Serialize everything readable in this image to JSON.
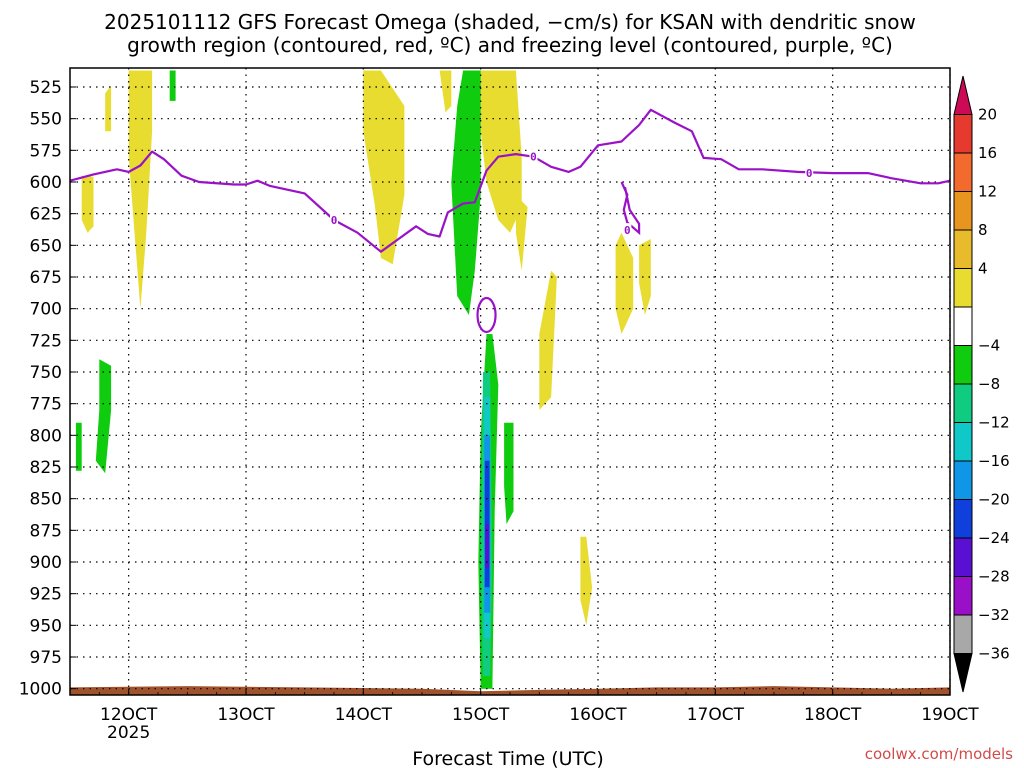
{
  "chart_data": {
    "type": "heatmap",
    "title_line1": "2025101112 GFS Forecast Omega (shaded, −cm/s) for KSAN with dendritic snow",
    "title_line2": "growth region (contoured, red, ºC) and freezing level (contoured, purple, ºC)",
    "xlabel": "Forecast Time (UTC)",
    "x_ticks": [
      "12OCT",
      "13OCT",
      "14OCT",
      "15OCT",
      "16OCT",
      "17OCT",
      "18OCT",
      "19OCT"
    ],
    "x_subtick": "2025",
    "x_range_days": [
      11.5,
      19.0
    ],
    "y_ticks": [
      "525",
      "550",
      "575",
      "600",
      "625",
      "650",
      "675",
      "700",
      "725",
      "750",
      "775",
      "800",
      "825",
      "850",
      "875",
      "900",
      "925",
      "950",
      "975",
      "1000"
    ],
    "y_range_hpa": [
      510,
      1005
    ],
    "colorbar": {
      "labels": [
        "20",
        "16",
        "12",
        "8",
        "4",
        "−4",
        "−8",
        "−12",
        "−16",
        "−20",
        "−24",
        "−28",
        "−32",
        "−36"
      ],
      "bins": [
        {
          "color": "#cc0a55"
        },
        {
          "color": "#e63a2e"
        },
        {
          "color": "#f26a2e"
        },
        {
          "color": "#e8951f"
        },
        {
          "color": "#e8bb2c"
        },
        {
          "color": "#e8dc30"
        },
        {
          "color": "#ffffff"
        },
        {
          "color": "#0fcc0f"
        },
        {
          "color": "#10cc80"
        },
        {
          "color": "#10c8c8"
        },
        {
          "color": "#1096e6"
        },
        {
          "color": "#1040dc"
        },
        {
          "color": "#5a10d2"
        },
        {
          "color": "#9a10c8"
        },
        {
          "color": "#a8a8a8"
        },
        {
          "color": "#000000"
        }
      ]
    },
    "freezing_level": {
      "label": "0",
      "color": "#9a12c8",
      "points": [
        [
          11.5,
          599
        ],
        [
          11.7,
          594
        ],
        [
          11.9,
          590
        ],
        [
          12.0,
          592
        ],
        [
          12.1,
          587
        ],
        [
          12.2,
          576
        ],
        [
          12.3,
          582
        ],
        [
          12.45,
          595
        ],
        [
          12.6,
          600
        ],
        [
          12.9,
          602
        ],
        [
          13.0,
          602
        ],
        [
          13.1,
          599
        ],
        [
          13.2,
          603
        ],
        [
          13.5,
          609
        ],
        [
          13.75,
          630
        ],
        [
          13.95,
          640
        ],
        [
          14.15,
          655
        ],
        [
          14.3,
          645
        ],
        [
          14.45,
          635
        ],
        [
          14.55,
          641
        ],
        [
          14.65,
          643
        ],
        [
          14.72,
          624
        ],
        [
          14.85,
          617
        ],
        [
          14.95,
          616
        ],
        [
          15.05,
          591
        ],
        [
          15.15,
          580
        ],
        [
          15.3,
          578
        ],
        [
          15.45,
          580
        ],
        [
          15.6,
          588
        ],
        [
          15.75,
          592
        ],
        [
          15.85,
          588
        ],
        [
          16.0,
          571
        ],
        [
          16.2,
          568
        ],
        [
          16.35,
          555
        ],
        [
          16.45,
          543
        ],
        [
          16.65,
          553
        ],
        [
          16.8,
          560
        ],
        [
          16.9,
          581
        ],
        [
          17.05,
          582
        ],
        [
          17.2,
          590
        ],
        [
          17.4,
          590
        ],
        [
          17.7,
          592
        ],
        [
          18.0,
          593
        ],
        [
          18.3,
          593
        ],
        [
          18.5,
          597
        ],
        [
          18.75,
          601
        ],
        [
          18.9,
          601
        ],
        [
          19.0,
          599
        ]
      ],
      "label_positions": [
        [
          13.75,
          630
        ],
        [
          15.45,
          580
        ],
        [
          16.25,
          638
        ],
        [
          17.8,
          593
        ]
      ]
    },
    "omega_regions": [
      {
        "value": "4 to 8",
        "color": "#e8dc30",
        "points": [
          [
            11.6,
            595
          ],
          [
            11.7,
            596
          ],
          [
            11.7,
            635
          ],
          [
            11.65,
            640
          ],
          [
            11.6,
            630
          ]
        ]
      },
      {
        "value": "4 to 8",
        "color": "#e8dc30",
        "points": [
          [
            11.8,
            530
          ],
          [
            11.85,
            524
          ],
          [
            11.85,
            560
          ],
          [
            11.8,
            560
          ]
        ]
      },
      {
        "value": "4 to 8",
        "color": "#e8dc30",
        "points": [
          [
            12.0,
            512
          ],
          [
            12.2,
            512
          ],
          [
            12.2,
            560
          ],
          [
            12.15,
            640
          ],
          [
            12.1,
            700
          ],
          [
            12.05,
            640
          ],
          [
            12.0,
            580
          ]
        ]
      },
      {
        "value": "4 to 8",
        "color": "#e8dc30",
        "points": [
          [
            14.0,
            512
          ],
          [
            14.15,
            512
          ],
          [
            14.35,
            540
          ],
          [
            14.35,
            610
          ],
          [
            14.25,
            665
          ],
          [
            14.15,
            660
          ],
          [
            14.1,
            620
          ],
          [
            14.0,
            560
          ]
        ]
      },
      {
        "value": "4 to 8",
        "color": "#e8dc30",
        "points": [
          [
            14.65,
            512
          ],
          [
            14.75,
            512
          ],
          [
            14.75,
            540
          ],
          [
            14.7,
            545
          ]
        ]
      },
      {
        "value": "4 to 8",
        "color": "#e8dc30",
        "points": [
          [
            15.0,
            512
          ],
          [
            15.3,
            512
          ],
          [
            15.35,
            580
          ],
          [
            15.35,
            620
          ],
          [
            15.25,
            640
          ],
          [
            15.15,
            630
          ],
          [
            15.05,
            600
          ],
          [
            15.0,
            560
          ]
        ]
      },
      {
        "value": "4 to 8",
        "color": "#e8dc30",
        "points": [
          [
            15.3,
            610
          ],
          [
            15.4,
            620
          ],
          [
            15.35,
            670
          ],
          [
            15.3,
            640
          ]
        ]
      },
      {
        "value": "4 to 8",
        "color": "#e8dc30",
        "points": [
          [
            15.6,
            670
          ],
          [
            15.65,
            675
          ],
          [
            15.6,
            770
          ],
          [
            15.5,
            780
          ],
          [
            15.5,
            720
          ]
        ]
      },
      {
        "value": "4 to 8",
        "color": "#e8dc30",
        "points": [
          [
            16.15,
            650
          ],
          [
            16.2,
            640
          ],
          [
            16.3,
            660
          ],
          [
            16.3,
            700
          ],
          [
            16.2,
            720
          ],
          [
            16.15,
            700
          ]
        ]
      },
      {
        "value": "4 to 8",
        "color": "#e8dc30",
        "points": [
          [
            16.35,
            650
          ],
          [
            16.45,
            645
          ],
          [
            16.45,
            690
          ],
          [
            16.4,
            705
          ],
          [
            16.35,
            680
          ]
        ]
      },
      {
        "value": "4 to 8",
        "color": "#e8dc30",
        "points": [
          [
            15.85,
            880
          ],
          [
            15.9,
            880
          ],
          [
            15.95,
            920
          ],
          [
            15.9,
            950
          ],
          [
            15.85,
            930
          ]
        ]
      },
      {
        "value": "-4 to -8",
        "color": "#0fcc0f",
        "points": [
          [
            14.85,
            512
          ],
          [
            15.0,
            512
          ],
          [
            15.0,
            610
          ],
          [
            14.95,
            670
          ],
          [
            14.9,
            705
          ],
          [
            14.8,
            690
          ],
          [
            14.75,
            600
          ],
          [
            14.8,
            540
          ]
        ]
      },
      {
        "value": "-4 to -8",
        "color": "#0fcc0f",
        "points": [
          [
            15.05,
            720
          ],
          [
            15.1,
            720
          ],
          [
            15.15,
            760
          ],
          [
            15.12,
            860
          ],
          [
            15.1,
            1000
          ],
          [
            15.0,
            1000
          ],
          [
            14.98,
            900
          ],
          [
            15.0,
            800
          ]
        ]
      },
      {
        "value": "-4 to -8",
        "color": "#0fcc0f",
        "points": [
          [
            15.2,
            790
          ],
          [
            15.28,
            790
          ],
          [
            15.28,
            860
          ],
          [
            15.22,
            870
          ],
          [
            15.2,
            840
          ]
        ]
      },
      {
        "value": "-4 to -8",
        "color": "#0fcc0f",
        "points": [
          [
            11.75,
            740
          ],
          [
            11.85,
            745
          ],
          [
            11.85,
            780
          ],
          [
            11.8,
            830
          ],
          [
            11.72,
            820
          ],
          [
            11.75,
            780
          ]
        ]
      },
      {
        "value": "-4 to -8",
        "color": "#0fcc0f",
        "points": [
          [
            11.55,
            790
          ],
          [
            11.6,
            790
          ],
          [
            11.6,
            828
          ],
          [
            11.55,
            828
          ]
        ]
      },
      {
        "value": "-4 to -8",
        "color": "#0fcc0f",
        "points": [
          [
            12.35,
            512
          ],
          [
            12.4,
            512
          ],
          [
            12.4,
            536
          ],
          [
            12.35,
            536
          ]
        ]
      },
      {
        "value": "-8 to -12",
        "color": "#10cc80",
        "points": [
          [
            15.02,
            750
          ],
          [
            15.08,
            750
          ],
          [
            15.1,
            900
          ],
          [
            15.08,
            990
          ],
          [
            15.02,
            990
          ],
          [
            15.0,
            900
          ]
        ]
      },
      {
        "value": "-12 to -16",
        "color": "#10c8c8",
        "points": [
          [
            15.03,
            770
          ],
          [
            15.08,
            770
          ],
          [
            15.08,
            960
          ],
          [
            15.03,
            960
          ]
        ]
      },
      {
        "value": "-16 to -20",
        "color": "#1096e6",
        "points": [
          [
            15.03,
            800
          ],
          [
            15.08,
            800
          ],
          [
            15.08,
            940
          ],
          [
            15.03,
            940
          ]
        ]
      },
      {
        "value": "-20 to -24",
        "color": "#1040dc",
        "points": [
          [
            15.035,
            820
          ],
          [
            15.075,
            820
          ],
          [
            15.075,
            920
          ],
          [
            15.035,
            920
          ]
        ]
      },
      {
        "value": "-24 to -28",
        "color": "#5a10d2",
        "points": [
          [
            15.04,
            870
          ],
          [
            15.07,
            870
          ],
          [
            15.07,
            905
          ],
          [
            15.04,
            905
          ]
        ]
      }
    ],
    "terrain": {
      "color": "#a0522d",
      "top_points": [
        [
          11.5,
          999
        ],
        [
          12.5,
          998
        ],
        [
          13.5,
          999
        ],
        [
          14.5,
          1000
        ],
        [
          15.0,
          1002
        ],
        [
          15.5,
          1001
        ],
        [
          16.0,
          1000
        ],
        [
          16.5,
          999
        ],
        [
          17.0,
          999
        ],
        [
          17.5,
          998
        ],
        [
          18.0,
          999
        ],
        [
          18.5,
          1000
        ],
        [
          19.0,
          999
        ]
      ]
    }
  },
  "watermark": "coolwx.com/models"
}
